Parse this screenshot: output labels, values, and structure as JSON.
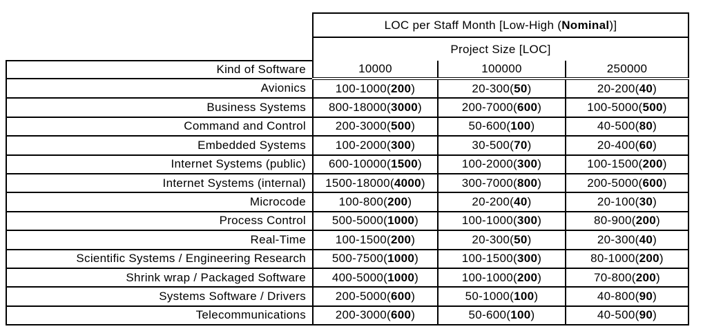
{
  "page": {
    "background": "#ffffff",
    "line_color": "#000000"
  },
  "table": {
    "title": {
      "prefix": "LOC per Staff Month [Low-High (",
      "bold": "Nominal",
      "suffix": ")]"
    },
    "subtitle": "Project Size [LOC]",
    "corner_header": "Kind of Software",
    "size_columns": [
      "10000",
      "100000",
      "250000"
    ],
    "punctuation": {
      "open_paren": "(",
      "close_paren": ")"
    },
    "rows": [
      {
        "kind": "Avionics",
        "cells": [
          {
            "range": "100-1000",
            "nominal": "200"
          },
          {
            "range": "20-300",
            "nominal": "50"
          },
          {
            "range": "20-200",
            "nominal": "40"
          }
        ]
      },
      {
        "kind": "Business Systems",
        "cells": [
          {
            "range": "800-18000",
            "nominal": "3000"
          },
          {
            "range": "200-7000",
            "nominal": "600"
          },
          {
            "range": "100-5000",
            "nominal": "500"
          }
        ]
      },
      {
        "kind": "Command and Control",
        "cells": [
          {
            "range": "200-3000",
            "nominal": "500"
          },
          {
            "range": "50-600",
            "nominal": "100"
          },
          {
            "range": "40-500",
            "nominal": "80"
          }
        ]
      },
      {
        "kind": "Embedded Systems",
        "cells": [
          {
            "range": "100-2000",
            "nominal": "300"
          },
          {
            "range": "30-500",
            "nominal": "70"
          },
          {
            "range": "20-400",
            "nominal": "60"
          }
        ]
      },
      {
        "kind": "Internet Systems (public)",
        "cells": [
          {
            "range": "600-10000",
            "nominal": "1500"
          },
          {
            "range": "100-2000",
            "nominal": "300"
          },
          {
            "range": "100-1500",
            "nominal": "200"
          }
        ]
      },
      {
        "kind": "Internet Systems (internal)",
        "cells": [
          {
            "range": "1500-18000",
            "nominal": "4000"
          },
          {
            "range": "300-7000",
            "nominal": "800"
          },
          {
            "range": "200-5000",
            "nominal": "600"
          }
        ]
      },
      {
        "kind": "Microcode",
        "cells": [
          {
            "range": "100-800",
            "nominal": "200"
          },
          {
            "range": "20-200",
            "nominal": "40"
          },
          {
            "range": "20-100",
            "nominal": "30"
          }
        ]
      },
      {
        "kind": "Process Control",
        "cells": [
          {
            "range": "500-5000",
            "nominal": "1000"
          },
          {
            "range": "100-1000",
            "nominal": "300"
          },
          {
            "range": "80-900",
            "nominal": "200"
          }
        ]
      },
      {
        "kind": "Real-Time",
        "cells": [
          {
            "range": "100-1500",
            "nominal": "200"
          },
          {
            "range": "20-300",
            "nominal": "50"
          },
          {
            "range": "20-300",
            "nominal": "40"
          }
        ]
      },
      {
        "kind": "Scientific Systems / Engineering Research",
        "cells": [
          {
            "range": "500-7500",
            "nominal": "1000"
          },
          {
            "range": "100-1500",
            "nominal": "300"
          },
          {
            "range": "80-1000",
            "nominal": "200"
          }
        ]
      },
      {
        "kind": "Shrink wrap / Packaged Software",
        "cells": [
          {
            "range": "400-5000",
            "nominal": "1000"
          },
          {
            "range": "100-1000",
            "nominal": "200"
          },
          {
            "range": "70-800",
            "nominal": "200"
          }
        ]
      },
      {
        "kind": "Systems Software / Drivers",
        "cells": [
          {
            "range": "200-5000",
            "nominal": "600"
          },
          {
            "range": "50-1000",
            "nominal": "100"
          },
          {
            "range": "40-800",
            "nominal": "90"
          }
        ]
      },
      {
        "kind": "Telecommunications",
        "cells": [
          {
            "range": "200-3000",
            "nominal": "600"
          },
          {
            "range": "50-600",
            "nominal": "100"
          },
          {
            "range": "40-500",
            "nominal": "90"
          }
        ]
      }
    ]
  }
}
